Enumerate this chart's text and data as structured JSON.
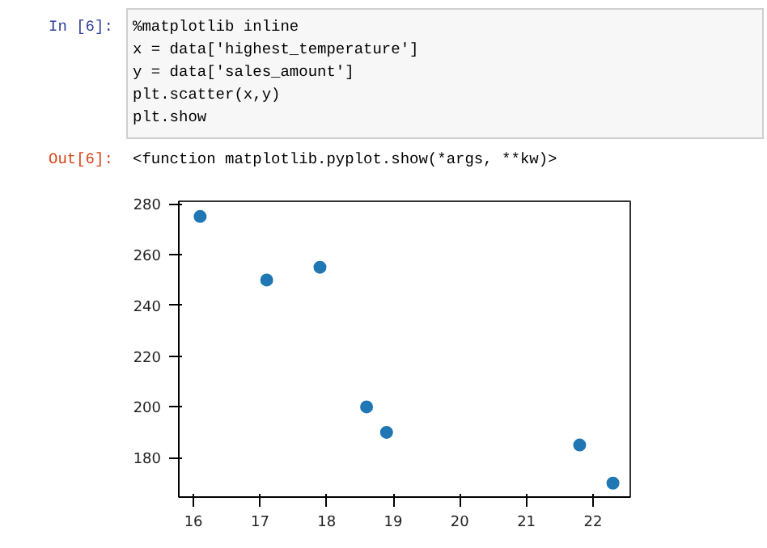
{
  "chart_data": {
    "type": "scatter",
    "annotations": [
      "In [6]:",
      "%matplotlib inline",
      "x = data['highest_temperature']",
      "y = data['sales_amount']",
      "plt.scatter(x,y)",
      "plt.show",
      "Out[6]:",
      "<function matplotlib.pyplot.show(*args, **kw)>"
    ],
    "x": [
      16.1,
      17.1,
      17.9,
      18.6,
      18.9,
      21.8,
      22.3
    ],
    "series": [
      {
        "color": "#1f77b4",
        "values": [
          275,
          250,
          255,
          200,
          190,
          185,
          170
        ]
      }
    ],
    "xlim": [
      15.78,
      22.56
    ],
    "ylim": [
      164.5,
      281
    ],
    "xticks": [
      16,
      17,
      18,
      19,
      20,
      21,
      22
    ],
    "yticks": [
      180,
      200,
      220,
      240,
      260,
      280
    ],
    "grid": false,
    "marker": "circle"
  }
}
